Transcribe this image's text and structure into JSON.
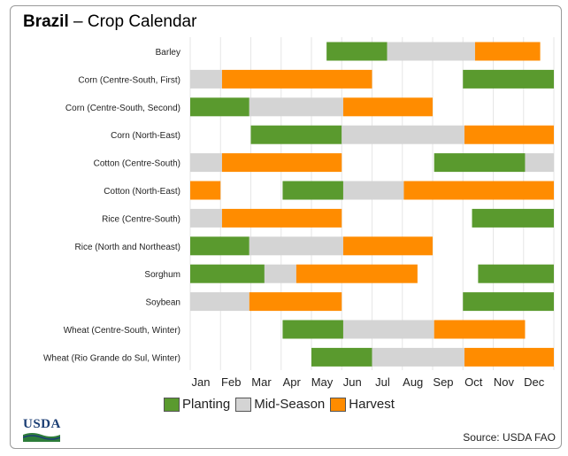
{
  "header": {
    "country": "Brazil",
    "subtitle": "– Crop Calendar"
  },
  "legend": [
    {
      "label": "Planting",
      "color": "#5a9a2e"
    },
    {
      "label": "Mid-Season",
      "color": "#d4d4d4"
    },
    {
      "label": "Harvest",
      "color": "#ff8c00"
    }
  ],
  "logo": {
    "text": "USDA"
  },
  "source": "Source: USDA FAO",
  "chart_data": {
    "type": "gantt",
    "x_ticks": [
      "Jan",
      "Feb",
      "Mar",
      "Apr",
      "May",
      "Jun",
      "Jul",
      "Aug",
      "Sep",
      "Oct",
      "Nov",
      "Dec"
    ],
    "xlim": [
      1,
      13
    ],
    "grid": true,
    "rows": [
      {
        "crop": "Barley",
        "segments": [
          {
            "stage": "Planting",
            "start": 5.5,
            "end": 7.5
          },
          {
            "stage": "Mid-Season",
            "start": 7.5,
            "end": 10.4
          },
          {
            "stage": "Harvest",
            "start": 10.4,
            "end": 12.55
          }
        ]
      },
      {
        "crop": "Corn (Centre-South, First)",
        "segments": [
          {
            "stage": "Mid-Season",
            "start": 1.0,
            "end": 2.05
          },
          {
            "stage": "Harvest",
            "start": 2.05,
            "end": 7.0
          },
          {
            "stage": "Planting",
            "start": 10.0,
            "end": 13.0
          }
        ]
      },
      {
        "crop": "Corn (Centre-South, Second)",
        "segments": [
          {
            "stage": "Planting",
            "start": 1.0,
            "end": 2.95
          },
          {
            "stage": "Mid-Season",
            "start": 2.95,
            "end": 6.05
          },
          {
            "stage": "Harvest",
            "start": 6.05,
            "end": 9.0
          }
        ]
      },
      {
        "crop": "Corn (North-East)",
        "segments": [
          {
            "stage": "Planting",
            "start": 3.0,
            "end": 6.0
          },
          {
            "stage": "Mid-Season",
            "start": 6.0,
            "end": 10.05
          },
          {
            "stage": "Harvest",
            "start": 10.05,
            "end": 13.0
          }
        ]
      },
      {
        "crop": "Cotton (Centre-South)",
        "segments": [
          {
            "stage": "Mid-Season",
            "start": 1.0,
            "end": 2.05
          },
          {
            "stage": "Harvest",
            "start": 2.05,
            "end": 6.0
          },
          {
            "stage": "Planting",
            "start": 9.05,
            "end": 12.05
          },
          {
            "stage": "Mid-Season",
            "start": 12.05,
            "end": 13.0
          }
        ]
      },
      {
        "crop": "Cotton (North-East)",
        "segments": [
          {
            "stage": "Harvest",
            "start": 1.0,
            "end": 2.0
          },
          {
            "stage": "Planting",
            "start": 4.05,
            "end": 6.05
          },
          {
            "stage": "Mid-Season",
            "start": 6.05,
            "end": 8.05
          },
          {
            "stage": "Harvest",
            "start": 8.05,
            "end": 13.0
          }
        ]
      },
      {
        "crop": "Rice (Centre-South)",
        "segments": [
          {
            "stage": "Mid-Season",
            "start": 1.0,
            "end": 2.05
          },
          {
            "stage": "Harvest",
            "start": 2.05,
            "end": 6.0
          },
          {
            "stage": "Planting",
            "start": 10.3,
            "end": 13.0
          }
        ]
      },
      {
        "crop": "Rice (North and Northeast)",
        "segments": [
          {
            "stage": "Planting",
            "start": 1.0,
            "end": 2.95
          },
          {
            "stage": "Mid-Season",
            "start": 2.95,
            "end": 6.05
          },
          {
            "stage": "Harvest",
            "start": 6.05,
            "end": 9.0
          }
        ]
      },
      {
        "crop": "Sorghum",
        "segments": [
          {
            "stage": "Planting",
            "start": 1.0,
            "end": 3.45
          },
          {
            "stage": "Mid-Season",
            "start": 3.45,
            "end": 4.5
          },
          {
            "stage": "Harvest",
            "start": 4.5,
            "end": 8.5
          },
          {
            "stage": "Planting",
            "start": 10.5,
            "end": 13.0
          }
        ]
      },
      {
        "crop": "Soybean",
        "segments": [
          {
            "stage": "Mid-Season",
            "start": 1.0,
            "end": 2.95
          },
          {
            "stage": "Harvest",
            "start": 2.95,
            "end": 6.0
          },
          {
            "stage": "Planting",
            "start": 10.0,
            "end": 13.0
          }
        ]
      },
      {
        "crop": "Wheat (Centre-South, Winter)",
        "segments": [
          {
            "stage": "Planting",
            "start": 4.05,
            "end": 6.05
          },
          {
            "stage": "Mid-Season",
            "start": 6.05,
            "end": 9.05
          },
          {
            "stage": "Harvest",
            "start": 9.05,
            "end": 12.05
          }
        ]
      },
      {
        "crop": "Wheat (Rio Grande do Sul, Winter)",
        "segments": [
          {
            "stage": "Planting",
            "start": 5.0,
            "end": 7.0
          },
          {
            "stage": "Mid-Season",
            "start": 7.0,
            "end": 10.05
          },
          {
            "stage": "Harvest",
            "start": 10.05,
            "end": 13.0
          }
        ]
      }
    ]
  }
}
